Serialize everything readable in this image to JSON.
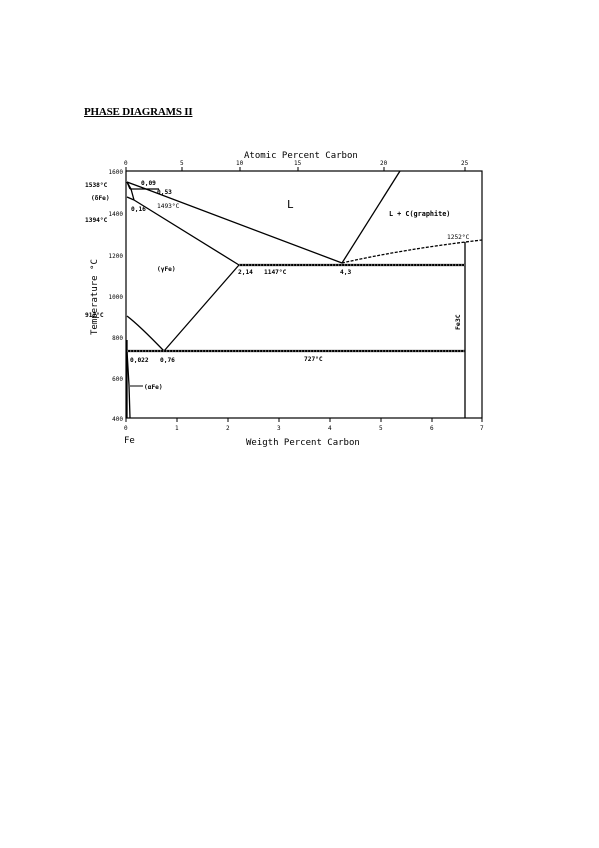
{
  "document": {
    "title": "PHASE DIAGRAMS II"
  },
  "diagram": {
    "top_axis_label": "Atomic Percent Carbon",
    "bottom_axis_label": "Weigth Percent Carbon",
    "left_axis_label": "Temperature °C",
    "origin_label": "Fe",
    "top_ticks": [
      "0",
      "5",
      "10",
      "15",
      "20",
      "25"
    ],
    "bottom_ticks": [
      "0",
      "1",
      "2",
      "3",
      "4",
      "5",
      "6",
      "7"
    ],
    "left_ticks": [
      "1600",
      "1400",
      "1200",
      "1000",
      "800",
      "600",
      "400"
    ],
    "labels": {
      "t1538": "1538°C",
      "p009": "0,09",
      "p053": "0,53",
      "delta": "(δFe)",
      "t1493": "1493°C",
      "p016": "0,16",
      "t1394": "1394°C",
      "liquid": "L",
      "liq_graphite": "L + C(graphite)",
      "t1252": "1252°C",
      "gamma": "(γFe)",
      "p214": "2,14",
      "t1147": "1147°C",
      "p43": "4,3",
      "t912": "912°C",
      "p0022": "0,022",
      "p076": "0,76",
      "t727": "727°C",
      "alpha": "(αFe)",
      "fe3c": "Fe3C"
    }
  }
}
